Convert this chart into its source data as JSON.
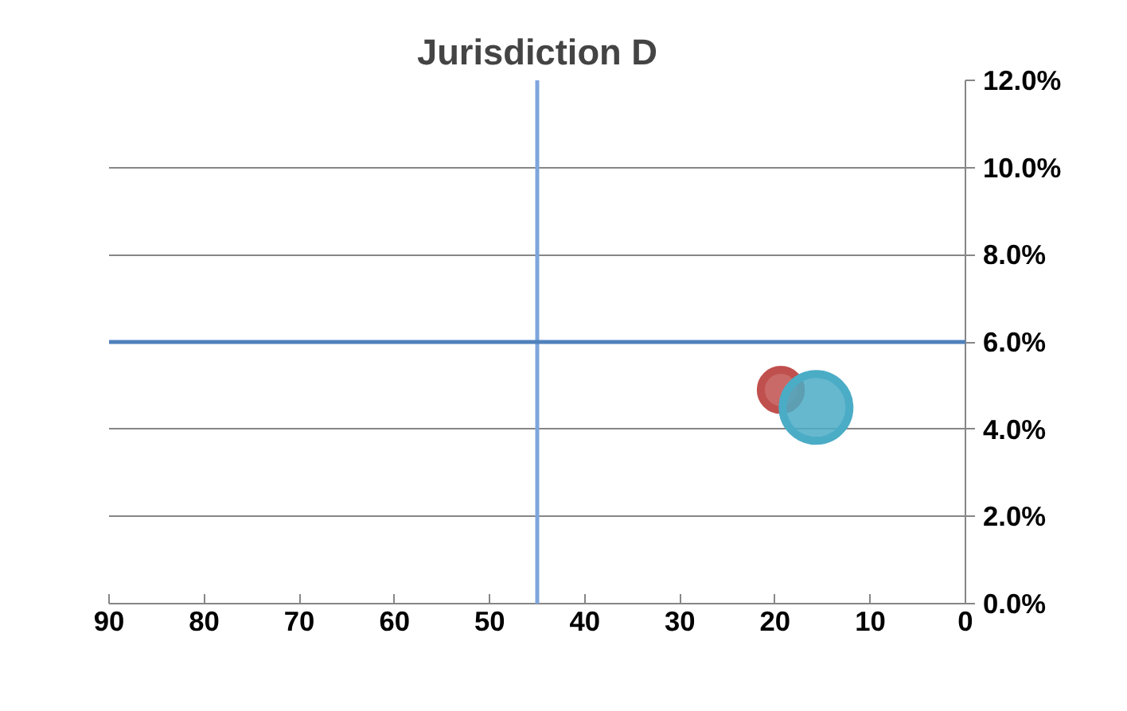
{
  "chart_data": {
    "type": "bubble",
    "title": "Jurisdiction D",
    "series": [
      {
        "color": "#c0504d",
        "x": [
          19.4
        ],
        "values": [
          4.9
        ],
        "sizes": [
          0.36
        ]
      },
      {
        "color": "#4bacc6",
        "x": [
          15.7
        ],
        "values": [
          4.5
        ],
        "sizes": [
          1
        ]
      }
    ],
    "xlim": [
      90,
      0
    ],
    "xticks": [
      90,
      80,
      70,
      60,
      50,
      40,
      30,
      20,
      10,
      0
    ],
    "ylim": [
      0,
      12
    ],
    "yticks": [
      {
        "value": 0,
        "label": "0.0%"
      },
      {
        "value": 2,
        "label": "2.0%"
      },
      {
        "value": 4,
        "label": "4.0%"
      },
      {
        "value": 6,
        "label": "6.0%"
      },
      {
        "value": 8,
        "label": "8.0%"
      },
      {
        "value": 10,
        "label": "10.0%"
      },
      {
        "value": 12,
        "label": "12.0%"
      }
    ],
    "grid": "y",
    "ref_lines": [
      {
        "axis": "x",
        "value": 45,
        "color": "#7ea6dc"
      },
      {
        "axis": "y",
        "value": 6,
        "color": "#4f81bd"
      }
    ]
  }
}
